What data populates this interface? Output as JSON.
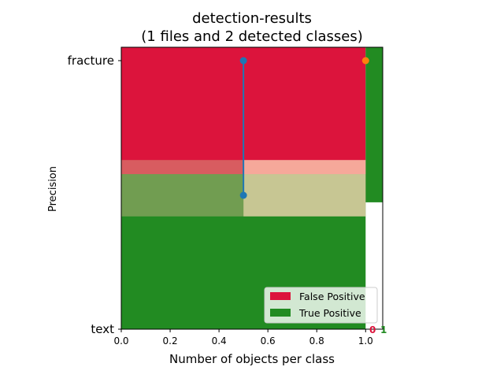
{
  "chart_data": {
    "type": "bar",
    "orientation": "horizontal",
    "stacked": true,
    "title": "detection-results",
    "subtitle": "(1 files and 2 detected classes)",
    "xlabel": "Number of objects per class",
    "ylabel": "Precision",
    "xlim": [
      0.0,
      1.07
    ],
    "xticks": [
      "0.0",
      "0.2",
      "0.4",
      "0.6",
      "0.8",
      "1.0"
    ],
    "categories": [
      "text",
      "fracture"
    ],
    "series": [
      {
        "name": "False Positive",
        "color": "#dc143c",
        "values": [
          0,
          1
        ]
      },
      {
        "name": "True Positive",
        "color": "#228b22",
        "values": [
          1,
          0.07
        ]
      }
    ],
    "overlays": [
      {
        "color": "#ffdab9",
        "alpha": 0.75,
        "y_range": [
          0.4,
          0.6
        ],
        "x_range": [
          0.5,
          1.0
        ]
      },
      {
        "color": "#d2b48c",
        "alpha": 0.45,
        "y_range": [
          0.4,
          0.6
        ],
        "x_range": [
          0.0,
          0.5
        ]
      }
    ],
    "line_series": [
      {
        "color": "#1f77b4",
        "points": [
          [
            0.5,
            1.0
          ],
          [
            0.5,
            0.5
          ]
        ]
      },
      {
        "color": "#ff7f0e",
        "points": [
          [
            1.0,
            1.0
          ]
        ]
      }
    ],
    "count_labels": [
      {
        "text": "0",
        "color": "#dc143c"
      },
      {
        "text": "1",
        "color": "#228b22"
      }
    ],
    "legend": {
      "position": "lower-right",
      "entries": [
        {
          "label": "False Positive",
          "color": "#dc143c"
        },
        {
          "label": "True Positive",
          "color": "#228b22"
        }
      ]
    },
    "grid": false
  }
}
